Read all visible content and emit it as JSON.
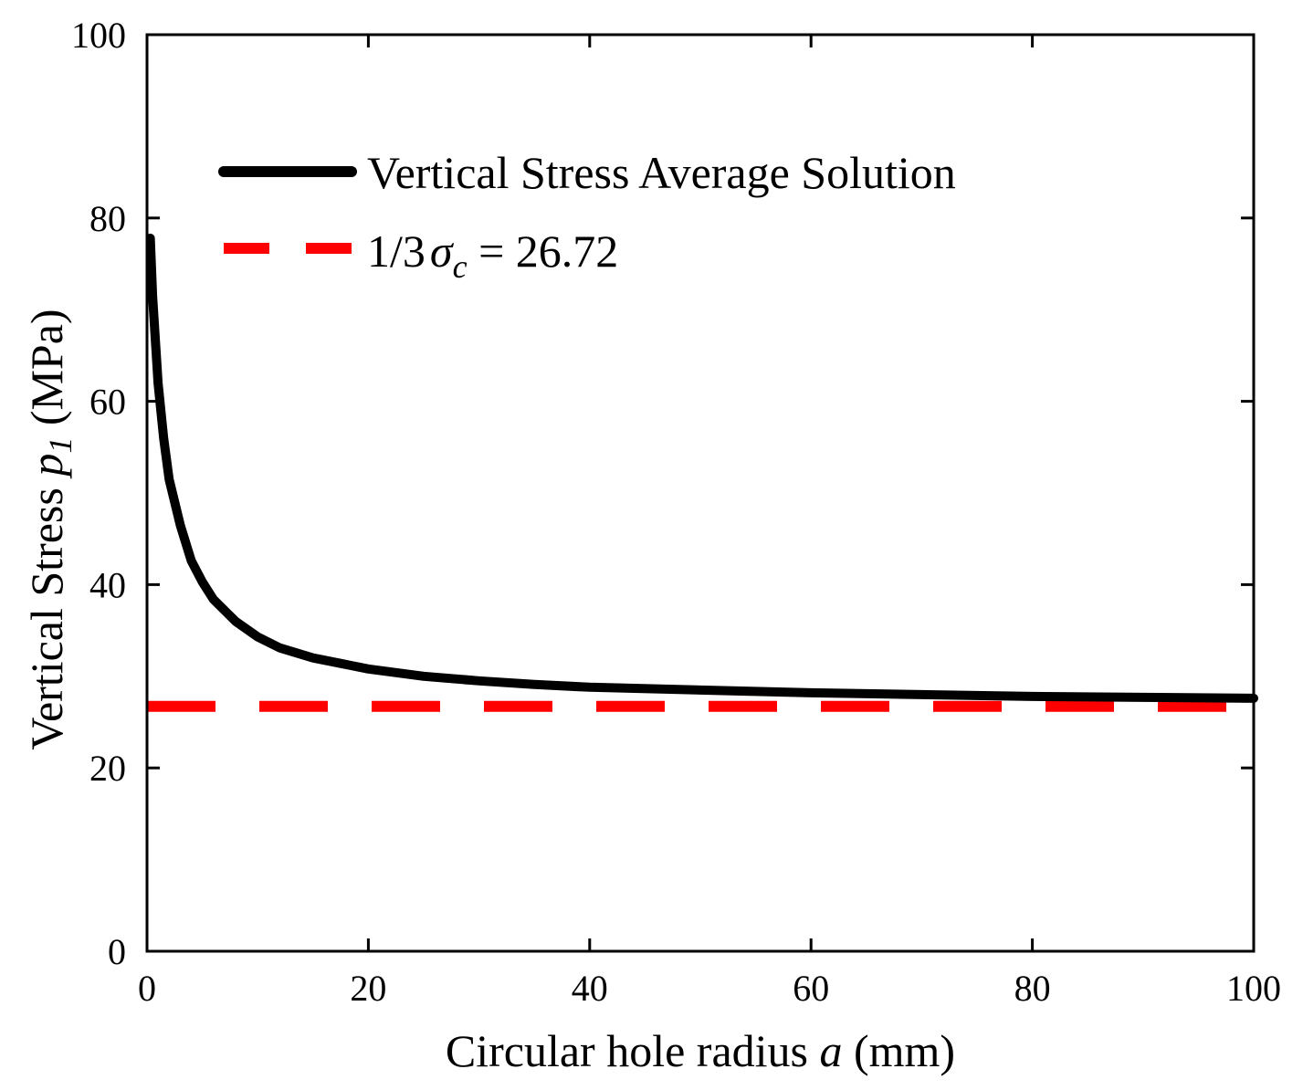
{
  "chart_data": {
    "type": "line",
    "xlabel": {
      "prefix": "Circular hole radius ",
      "var": "a",
      "suffix": " (mm)"
    },
    "ylabel": {
      "prefix": "Vertical Stress ",
      "var": "p",
      "sub": "1",
      "suffix": " (MPa)"
    },
    "xlim": [
      0,
      100
    ],
    "ylim": [
      0,
      100
    ],
    "x_ticks": [
      "0",
      "20",
      "40",
      "60",
      "80",
      "100"
    ],
    "y_ticks": [
      "0",
      "20",
      "40",
      "60",
      "80",
      "100"
    ],
    "grid": false,
    "legend_position": "top-left",
    "series": [
      {
        "name": "Vertical Stress Average Solution",
        "style": "solid",
        "color": "#000000",
        "x": [
          0.3,
          0.5,
          1,
          1.5,
          2,
          3,
          4,
          5,
          6,
          8,
          10,
          12,
          15,
          20,
          25,
          30,
          35,
          40,
          50,
          60,
          70,
          80,
          90,
          100
        ],
        "y": [
          77.8,
          71.5,
          62.0,
          56.0,
          51.5,
          46.5,
          42.6,
          40.3,
          38.4,
          36.0,
          34.3,
          33.1,
          32.0,
          30.8,
          30.0,
          29.5,
          29.1,
          28.8,
          28.5,
          28.2,
          28.0,
          27.8,
          27.7,
          27.6
        ]
      },
      {
        "name_prefix": "1/3",
        "name_sym": "σ",
        "name_sub": "c",
        "name_suffix": " = 26.72",
        "style": "dashed",
        "color": "#ff0000",
        "x": [
          0,
          100
        ],
        "y": [
          26.72,
          26.72
        ]
      }
    ]
  }
}
